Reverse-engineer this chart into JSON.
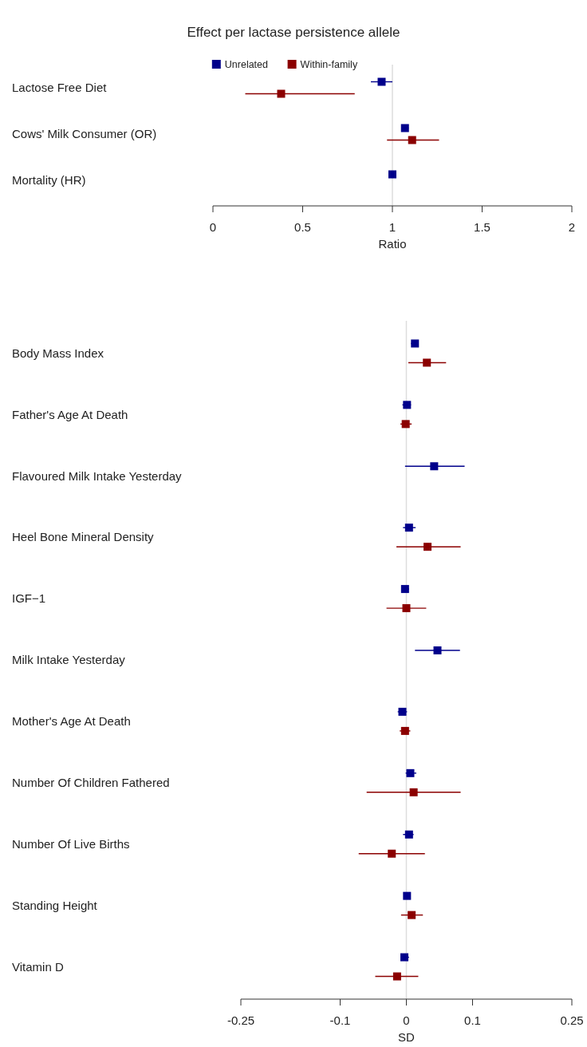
{
  "chart_data": [
    {
      "type": "scatter",
      "orientation": "horizontal",
      "title": "Effect per lactase persistence allele",
      "xlabel": "Ratio",
      "categories": [
        "Lactose Free Diet",
        "Cows' Milk Consumer (OR)",
        "Mortality (HR)"
      ],
      "series": [
        {
          "name": "Unrelated",
          "color": "#00008b",
          "values": [
            0.94,
            1.07,
            1.0
          ],
          "errors": [
            [
              0.88,
              1.0
            ],
            [
              1.05,
              1.09
            ],
            [
              0.98,
              1.02
            ]
          ]
        },
        {
          "name": "Within-family",
          "color": "#8b0000",
          "values": [
            0.38,
            1.11,
            null
          ],
          "errors": [
            [
              0.18,
              0.79
            ],
            [
              0.97,
              1.26
            ],
            null
          ]
        }
      ],
      "xlim": [
        0,
        2
      ],
      "xticks": [
        0,
        0.5,
        1,
        1.5,
        2
      ],
      "ref_lines": [
        {
          "axis": "x",
          "value": 1,
          "color": "#dddddd"
        }
      ],
      "marker": "square",
      "legend": "top"
    },
    {
      "type": "scatter",
      "orientation": "horizontal",
      "xlabel": "SD",
      "categories": [
        "Body Mass Index",
        "Father's Age At Death",
        "Flavoured Milk Intake Yesterday",
        "Heel Bone Mineral Density",
        "IGF−1",
        "Milk Intake Yesterday",
        "Mother's Age At Death",
        "Number Of Children Fathered",
        "Number Of Live Births",
        "Standing Height",
        "Vitamin D"
      ],
      "series": [
        {
          "color": "#00008b",
          "values": [
            0.013,
            0.001,
            0.042,
            0.004,
            -0.002,
            0.047,
            -0.006,
            0.006,
            0.004,
            0.001,
            -0.003
          ],
          "errors": [
            [
              0.007,
              0.018
            ],
            [
              -0.006,
              0.007
            ],
            [
              -0.002,
              0.088
            ],
            [
              -0.005,
              0.014
            ],
            [
              -0.007,
              0.004
            ],
            [
              0.013,
              0.081
            ],
            [
              -0.013,
              0.001
            ],
            [
              -0.001,
              0.015
            ],
            [
              -0.005,
              0.011
            ],
            null,
            [
              -0.009,
              0.004
            ]
          ]
        },
        {
          "color": "#8b0000",
          "values": [
            0.031,
            -0.001,
            null,
            0.032,
            0.0,
            null,
            -0.002,
            0.011,
            -0.022,
            0.008,
            -0.014
          ],
          "errors": [
            [
              0.003,
              0.06
            ],
            [
              -0.009,
              0.008
            ],
            null,
            [
              -0.015,
              0.082
            ],
            [
              -0.03,
              0.03
            ],
            null,
            [
              -0.01,
              0.006
            ],
            [
              -0.06,
              0.082
            ],
            [
              -0.072,
              0.028
            ],
            [
              -0.008,
              0.025
            ],
            [
              -0.047,
              0.018
            ]
          ]
        }
      ],
      "xlim": [
        -0.25,
        0.25
      ],
      "xticks": [
        -0.25,
        -0.1,
        0,
        0.1,
        0.25
      ],
      "ref_lines": [
        {
          "axis": "x",
          "value": 0,
          "color": "#dddddd"
        }
      ],
      "marker": "square"
    }
  ]
}
